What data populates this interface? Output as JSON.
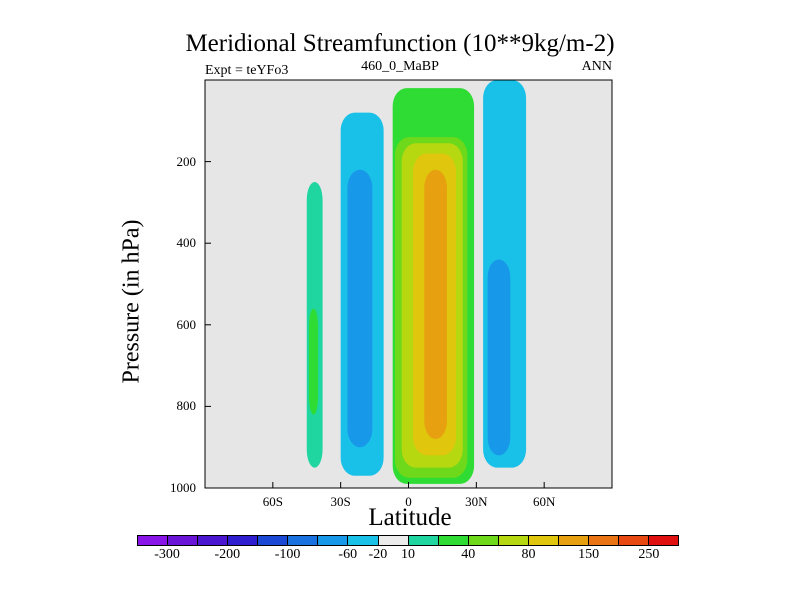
{
  "chart_data": {
    "type": "heatmap",
    "title": "Meridional Streamfunction (10**9kg/m-2)",
    "subtitle_left": "Expt = teYFo3",
    "subtitle_center": "460_0_MaBP",
    "subtitle_right": "ANN",
    "xlabel": "Latitude",
    "ylabel": "Pressure (in hPa)",
    "x_range": [
      -90,
      90
    ],
    "y_range": [
      1000,
      0
    ],
    "x_ticks": [
      {
        "value": -60,
        "label": "60S"
      },
      {
        "value": -30,
        "label": "30S"
      },
      {
        "value": 0,
        "label": "0"
      },
      {
        "value": 30,
        "label": "30N"
      },
      {
        "value": 60,
        "label": "60N"
      }
    ],
    "y_ticks": [
      {
        "value": 200,
        "label": "200"
      },
      {
        "value": 400,
        "label": "400"
      },
      {
        "value": 600,
        "label": "600"
      },
      {
        "value": 800,
        "label": "800"
      },
      {
        "value": 1000,
        "label": "1000"
      }
    ],
    "background_color": "#e6e6e6",
    "colorbar": {
      "colors": [
        "#8a15e8",
        "#6a14d8",
        "#4b16d0",
        "#2f1ed0",
        "#1b49d6",
        "#1a72e0",
        "#1898e8",
        "#19c0e8",
        "#ececec",
        "#1fd6a0",
        "#2edc34",
        "#6ed81a",
        "#b5d810",
        "#e0c60c",
        "#e6a010",
        "#ea7414",
        "#e84812",
        "#e01010"
      ],
      "labels": [
        "-300",
        "-200",
        "-100",
        "-60",
        "-20",
        "10",
        "40",
        "80",
        "150",
        "250"
      ]
    },
    "cells": [
      {
        "name": "cell-sh-southern",
        "lat": [
          -45,
          -38
        ],
        "p": [
          250,
          950
        ],
        "color": "#1fd6a0"
      },
      {
        "name": "cell-sh-southern-core",
        "lat": [
          -44,
          -40
        ],
        "p": [
          560,
          820
        ],
        "color": "#2edc34"
      },
      {
        "name": "cell-sh-ferrel",
        "lat": [
          -30,
          -11
        ],
        "p": [
          80,
          970
        ],
        "color": "#19c0e8"
      },
      {
        "name": "cell-sh-ferrel-core",
        "lat": [
          -27,
          -16
        ],
        "p": [
          220,
          900
        ],
        "color": "#1898e8"
      },
      {
        "name": "cell-hadley-outer",
        "lat": [
          -7,
          29
        ],
        "p": [
          20,
          990
        ],
        "color": "#2edc34"
      },
      {
        "name": "cell-hadley-1",
        "lat": [
          -6,
          26
        ],
        "p": [
          140,
          975
        ],
        "color": "#6ed81a"
      },
      {
        "name": "cell-hadley-2",
        "lat": [
          -3,
          24
        ],
        "p": [
          155,
          950
        ],
        "color": "#b5d810"
      },
      {
        "name": "cell-hadley-3",
        "lat": [
          2,
          21
        ],
        "p": [
          180,
          920
        ],
        "color": "#e0c60c"
      },
      {
        "name": "cell-hadley-core",
        "lat": [
          7,
          17
        ],
        "p": [
          220,
          880
        ],
        "color": "#e6a010"
      },
      {
        "name": "cell-nh-ferrel",
        "lat": [
          33,
          52
        ],
        "p": [
          0,
          950
        ],
        "color": "#19c0e8"
      },
      {
        "name": "cell-nh-ferrel-core",
        "lat": [
          35,
          45
        ],
        "p": [
          440,
          920
        ],
        "color": "#1898e8"
      }
    ]
  }
}
